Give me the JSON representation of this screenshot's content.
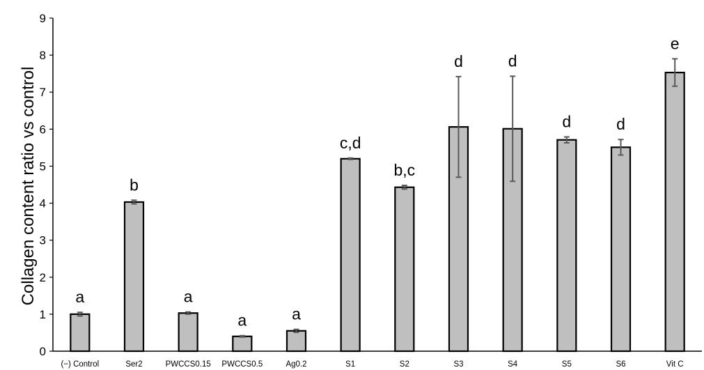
{
  "chart_data": {
    "type": "bar",
    "ylabel": "Collagen content ratio vs control",
    "xlabel": "",
    "ylim": [
      0,
      9
    ],
    "yticks": [
      0,
      1,
      2,
      3,
      4,
      5,
      6,
      7,
      8,
      9
    ],
    "grid": false,
    "bar_color": "#bfbfbf",
    "bar_edge_color": "#000000",
    "error_bar_color": "#595959",
    "categories": [
      "(−) Control",
      "Ser2",
      "PWCCS0.15",
      "PWCCS0.5",
      "Ag0.2",
      "S1",
      "S2",
      "S3",
      "S4",
      "S5",
      "S6",
      "Vit C"
    ],
    "values": [
      1.0,
      4.03,
      1.03,
      0.4,
      0.55,
      5.2,
      4.43,
      6.06,
      6.01,
      5.71,
      5.51,
      7.53
    ],
    "errors": [
      0.05,
      0.05,
      0.03,
      0.02,
      0.04,
      0.02,
      0.05,
      1.36,
      1.42,
      0.08,
      0.21,
      0.37
    ],
    "annotations": [
      "a",
      "b",
      "a",
      "a",
      "a",
      "c,d",
      "b,c",
      "d",
      "d",
      "d",
      "d",
      "e"
    ]
  }
}
